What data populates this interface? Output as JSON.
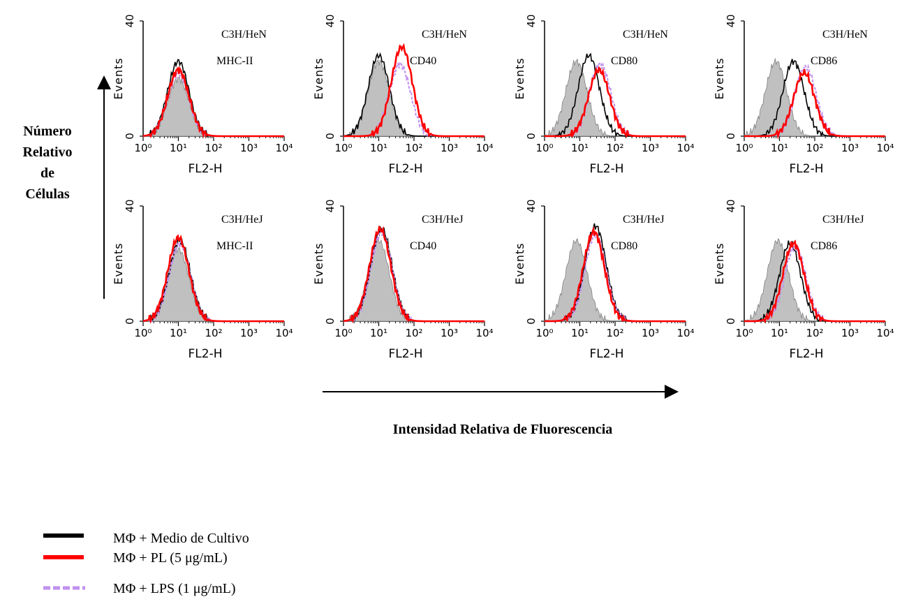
{
  "figure": {
    "y_axis_caption_lines": [
      "Número",
      "Relativo",
      "de",
      "Células"
    ],
    "x_axis_caption": "Intensidad Relativa de Fluorescencia"
  },
  "legend": [
    {
      "label": "MΦ + Medio de Cultivo",
      "color": "#000000",
      "style": "solid"
    },
    {
      "label": "MΦ + PL (5 μg/mL)",
      "color": "#ff0000",
      "style": "solid"
    },
    {
      "label": "MΦ + LPS (1 μg/mL)",
      "color": "#c090f0",
      "style": "dashed"
    }
  ],
  "chart_data": [
    {
      "type": "area",
      "strain": "C3H/HeN",
      "marker": "MHC-II",
      "xlabel": "FL2-H",
      "ylabel": "Events",
      "xscale": "log",
      "xlim": [
        1,
        10000
      ],
      "ylim": [
        0,
        40
      ],
      "yticks": [
        0,
        40
      ],
      "xtick_labels": [
        "10⁰",
        "10¹",
        "10²",
        "10³",
        "10⁴"
      ],
      "series": [
        {
          "key": "isotype",
          "peak_x": 10,
          "peak_y": 20
        },
        {
          "key": "medio",
          "peak_x": 10,
          "peak_y": 26
        },
        {
          "key": "pl",
          "peak_x": 10,
          "peak_y": 23
        },
        {
          "key": "lps",
          "peak_x": 10,
          "peak_y": 22
        }
      ]
    },
    {
      "type": "area",
      "strain": "C3H/HeN",
      "marker": "CD40",
      "xlabel": "FL2-H",
      "ylabel": "Events",
      "xscale": "log",
      "xlim": [
        1,
        10000
      ],
      "ylim": [
        0,
        40
      ],
      "yticks": [
        0,
        40
      ],
      "xtick_labels": [
        "10⁰",
        "10¹",
        "10²",
        "10³",
        "10⁴"
      ],
      "series": [
        {
          "key": "isotype",
          "peak_x": 10,
          "peak_y": 26
        },
        {
          "key": "medio",
          "peak_x": 10,
          "peak_y": 28
        },
        {
          "key": "pl",
          "peak_x": 45,
          "peak_y": 31
        },
        {
          "key": "lps",
          "peak_x": 40,
          "peak_y": 25
        }
      ]
    },
    {
      "type": "area",
      "strain": "C3H/HeN",
      "marker": "CD80",
      "xlabel": "FL2-H",
      "ylabel": "Events",
      "xscale": "log",
      "xlim": [
        1,
        10000
      ],
      "ylim": [
        0,
        40
      ],
      "yticks": [
        0,
        40
      ],
      "xtick_labels": [
        "10⁰",
        "10¹",
        "10²",
        "10³",
        "10⁴"
      ],
      "series": [
        {
          "key": "isotype",
          "peak_x": 8,
          "peak_y": 26
        },
        {
          "key": "medio",
          "peak_x": 18,
          "peak_y": 28
        },
        {
          "key": "pl",
          "peak_x": 35,
          "peak_y": 23
        },
        {
          "key": "lps",
          "peak_x": 38,
          "peak_y": 25
        }
      ]
    },
    {
      "type": "area",
      "strain": "C3H/HeN",
      "marker": "CD86",
      "xlabel": "FL2-H",
      "ylabel": "Events",
      "xscale": "log",
      "xlim": [
        1,
        10000
      ],
      "ylim": [
        0,
        40
      ],
      "yticks": [
        0,
        40
      ],
      "xtick_labels": [
        "10⁰",
        "10¹",
        "10²",
        "10³",
        "10⁴"
      ],
      "series": [
        {
          "key": "isotype",
          "peak_x": 8,
          "peak_y": 26
        },
        {
          "key": "medio",
          "peak_x": 25,
          "peak_y": 26
        },
        {
          "key": "pl",
          "peak_x": 50,
          "peak_y": 22
        },
        {
          "key": "lps",
          "peak_x": 55,
          "peak_y": 24
        }
      ]
    },
    {
      "type": "area",
      "strain": "C3H/HeJ",
      "marker": "MHC-II",
      "xlabel": "FL2-H",
      "ylabel": "Events",
      "xscale": "log",
      "xlim": [
        1,
        10000
      ],
      "ylim": [
        0,
        40
      ],
      "yticks": [
        0,
        40
      ],
      "xtick_labels": [
        "10⁰",
        "10¹",
        "10²",
        "10³",
        "10⁴"
      ],
      "series": [
        {
          "key": "isotype",
          "peak_x": 10,
          "peak_y": 25
        },
        {
          "key": "medio",
          "peak_x": 11,
          "peak_y": 28
        },
        {
          "key": "pl",
          "peak_x": 10,
          "peak_y": 29
        },
        {
          "key": "lps",
          "peak_x": 11,
          "peak_y": 27
        }
      ]
    },
    {
      "type": "area",
      "strain": "C3H/HeJ",
      "marker": "CD40",
      "xlabel": "FL2-H",
      "ylabel": "Events",
      "xscale": "log",
      "xlim": [
        1,
        10000
      ],
      "ylim": [
        0,
        40
      ],
      "yticks": [
        0,
        40
      ],
      "xtick_labels": [
        "10⁰",
        "10¹",
        "10²",
        "10³",
        "10⁴"
      ],
      "series": [
        {
          "key": "isotype",
          "peak_x": 10,
          "peak_y": 28
        },
        {
          "key": "medio",
          "peak_x": 12,
          "peak_y": 32
        },
        {
          "key": "pl",
          "peak_x": 11,
          "peak_y": 32
        },
        {
          "key": "lps",
          "peak_x": 12,
          "peak_y": 31
        }
      ]
    },
    {
      "type": "area",
      "strain": "C3H/HeJ",
      "marker": "CD80",
      "xlabel": "FL2-H",
      "ylabel": "Events",
      "xscale": "log",
      "xlim": [
        1,
        10000
      ],
      "ylim": [
        0,
        40
      ],
      "yticks": [
        0,
        40
      ],
      "xtick_labels": [
        "10⁰",
        "10¹",
        "10²",
        "10³",
        "10⁴"
      ],
      "series": [
        {
          "key": "isotype",
          "peak_x": 8,
          "peak_y": 28
        },
        {
          "key": "medio",
          "peak_x": 28,
          "peak_y": 33
        },
        {
          "key": "pl",
          "peak_x": 25,
          "peak_y": 31
        },
        {
          "key": "lps",
          "peak_x": 28,
          "peak_y": 30
        }
      ]
    },
    {
      "type": "area",
      "strain": "C3H/HeJ",
      "marker": "CD86",
      "xlabel": "FL2-H",
      "ylabel": "Events",
      "xscale": "log",
      "xlim": [
        1,
        10000
      ],
      "ylim": [
        0,
        40
      ],
      "yticks": [
        0,
        40
      ],
      "xtick_labels": [
        "10⁰",
        "10¹",
        "10²",
        "10³",
        "10⁴"
      ],
      "series": [
        {
          "key": "isotype",
          "peak_x": 9,
          "peak_y": 28
        },
        {
          "key": "medio",
          "peak_x": 20,
          "peak_y": 27
        },
        {
          "key": "pl",
          "peak_x": 25,
          "peak_y": 27
        },
        {
          "key": "lps",
          "peak_x": 28,
          "peak_y": 26
        }
      ]
    }
  ]
}
